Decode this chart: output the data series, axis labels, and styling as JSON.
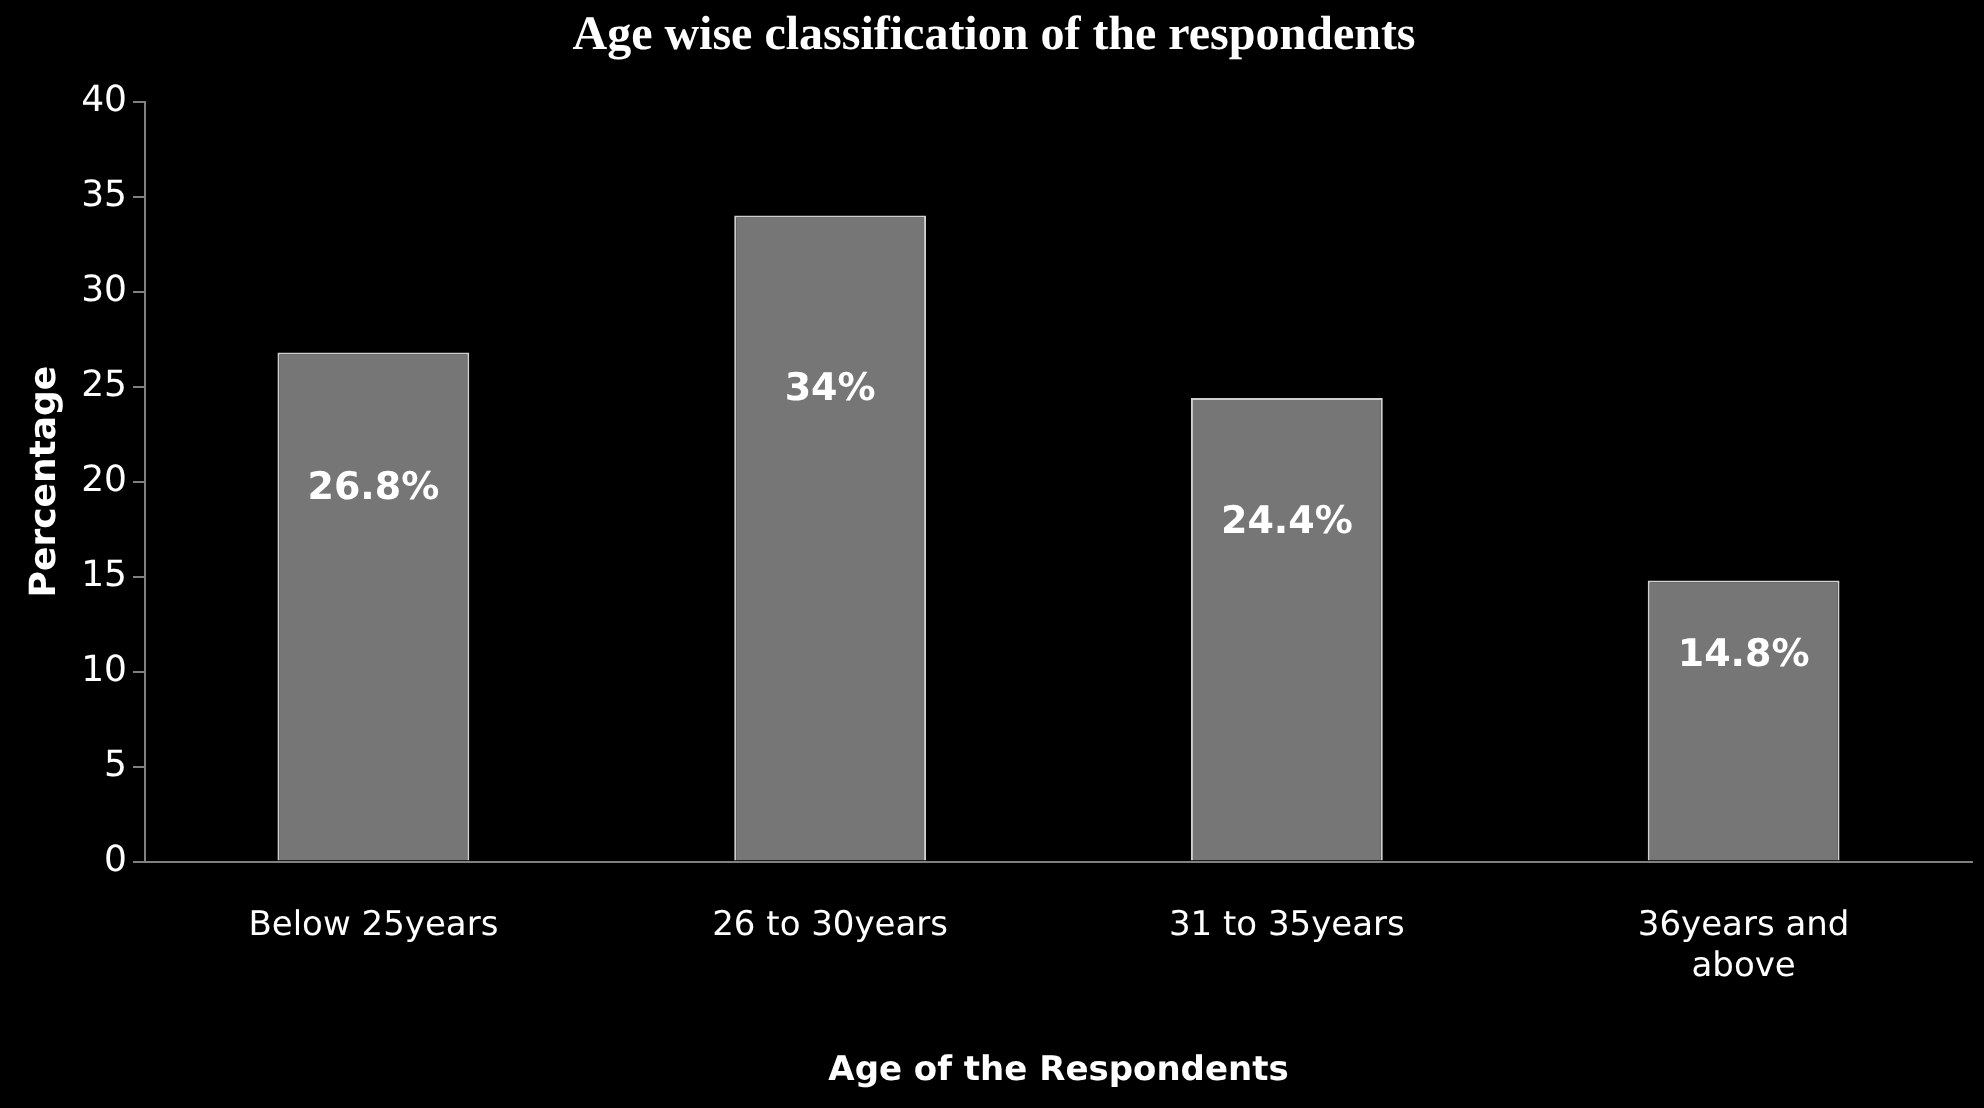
{
  "chart_data": {
    "type": "bar",
    "title": "Age wise classification of the respondents",
    "xlabel": "Age of the Respondents",
    "ylabel": "Percentage",
    "categories": [
      "Below 25years",
      "26 to 30years",
      "31 to 35years",
      "36years and above"
    ],
    "values": [
      26.8,
      34,
      24.4,
      14.8
    ],
    "value_labels": [
      "26.8%",
      "34%",
      "24.4%",
      "14.8%"
    ],
    "color": "#767676",
    "ylim": [
      0,
      40
    ],
    "yticks": [
      0,
      5,
      10,
      15,
      20,
      25,
      30,
      35,
      40
    ],
    "grid": false,
    "legend": false
  }
}
